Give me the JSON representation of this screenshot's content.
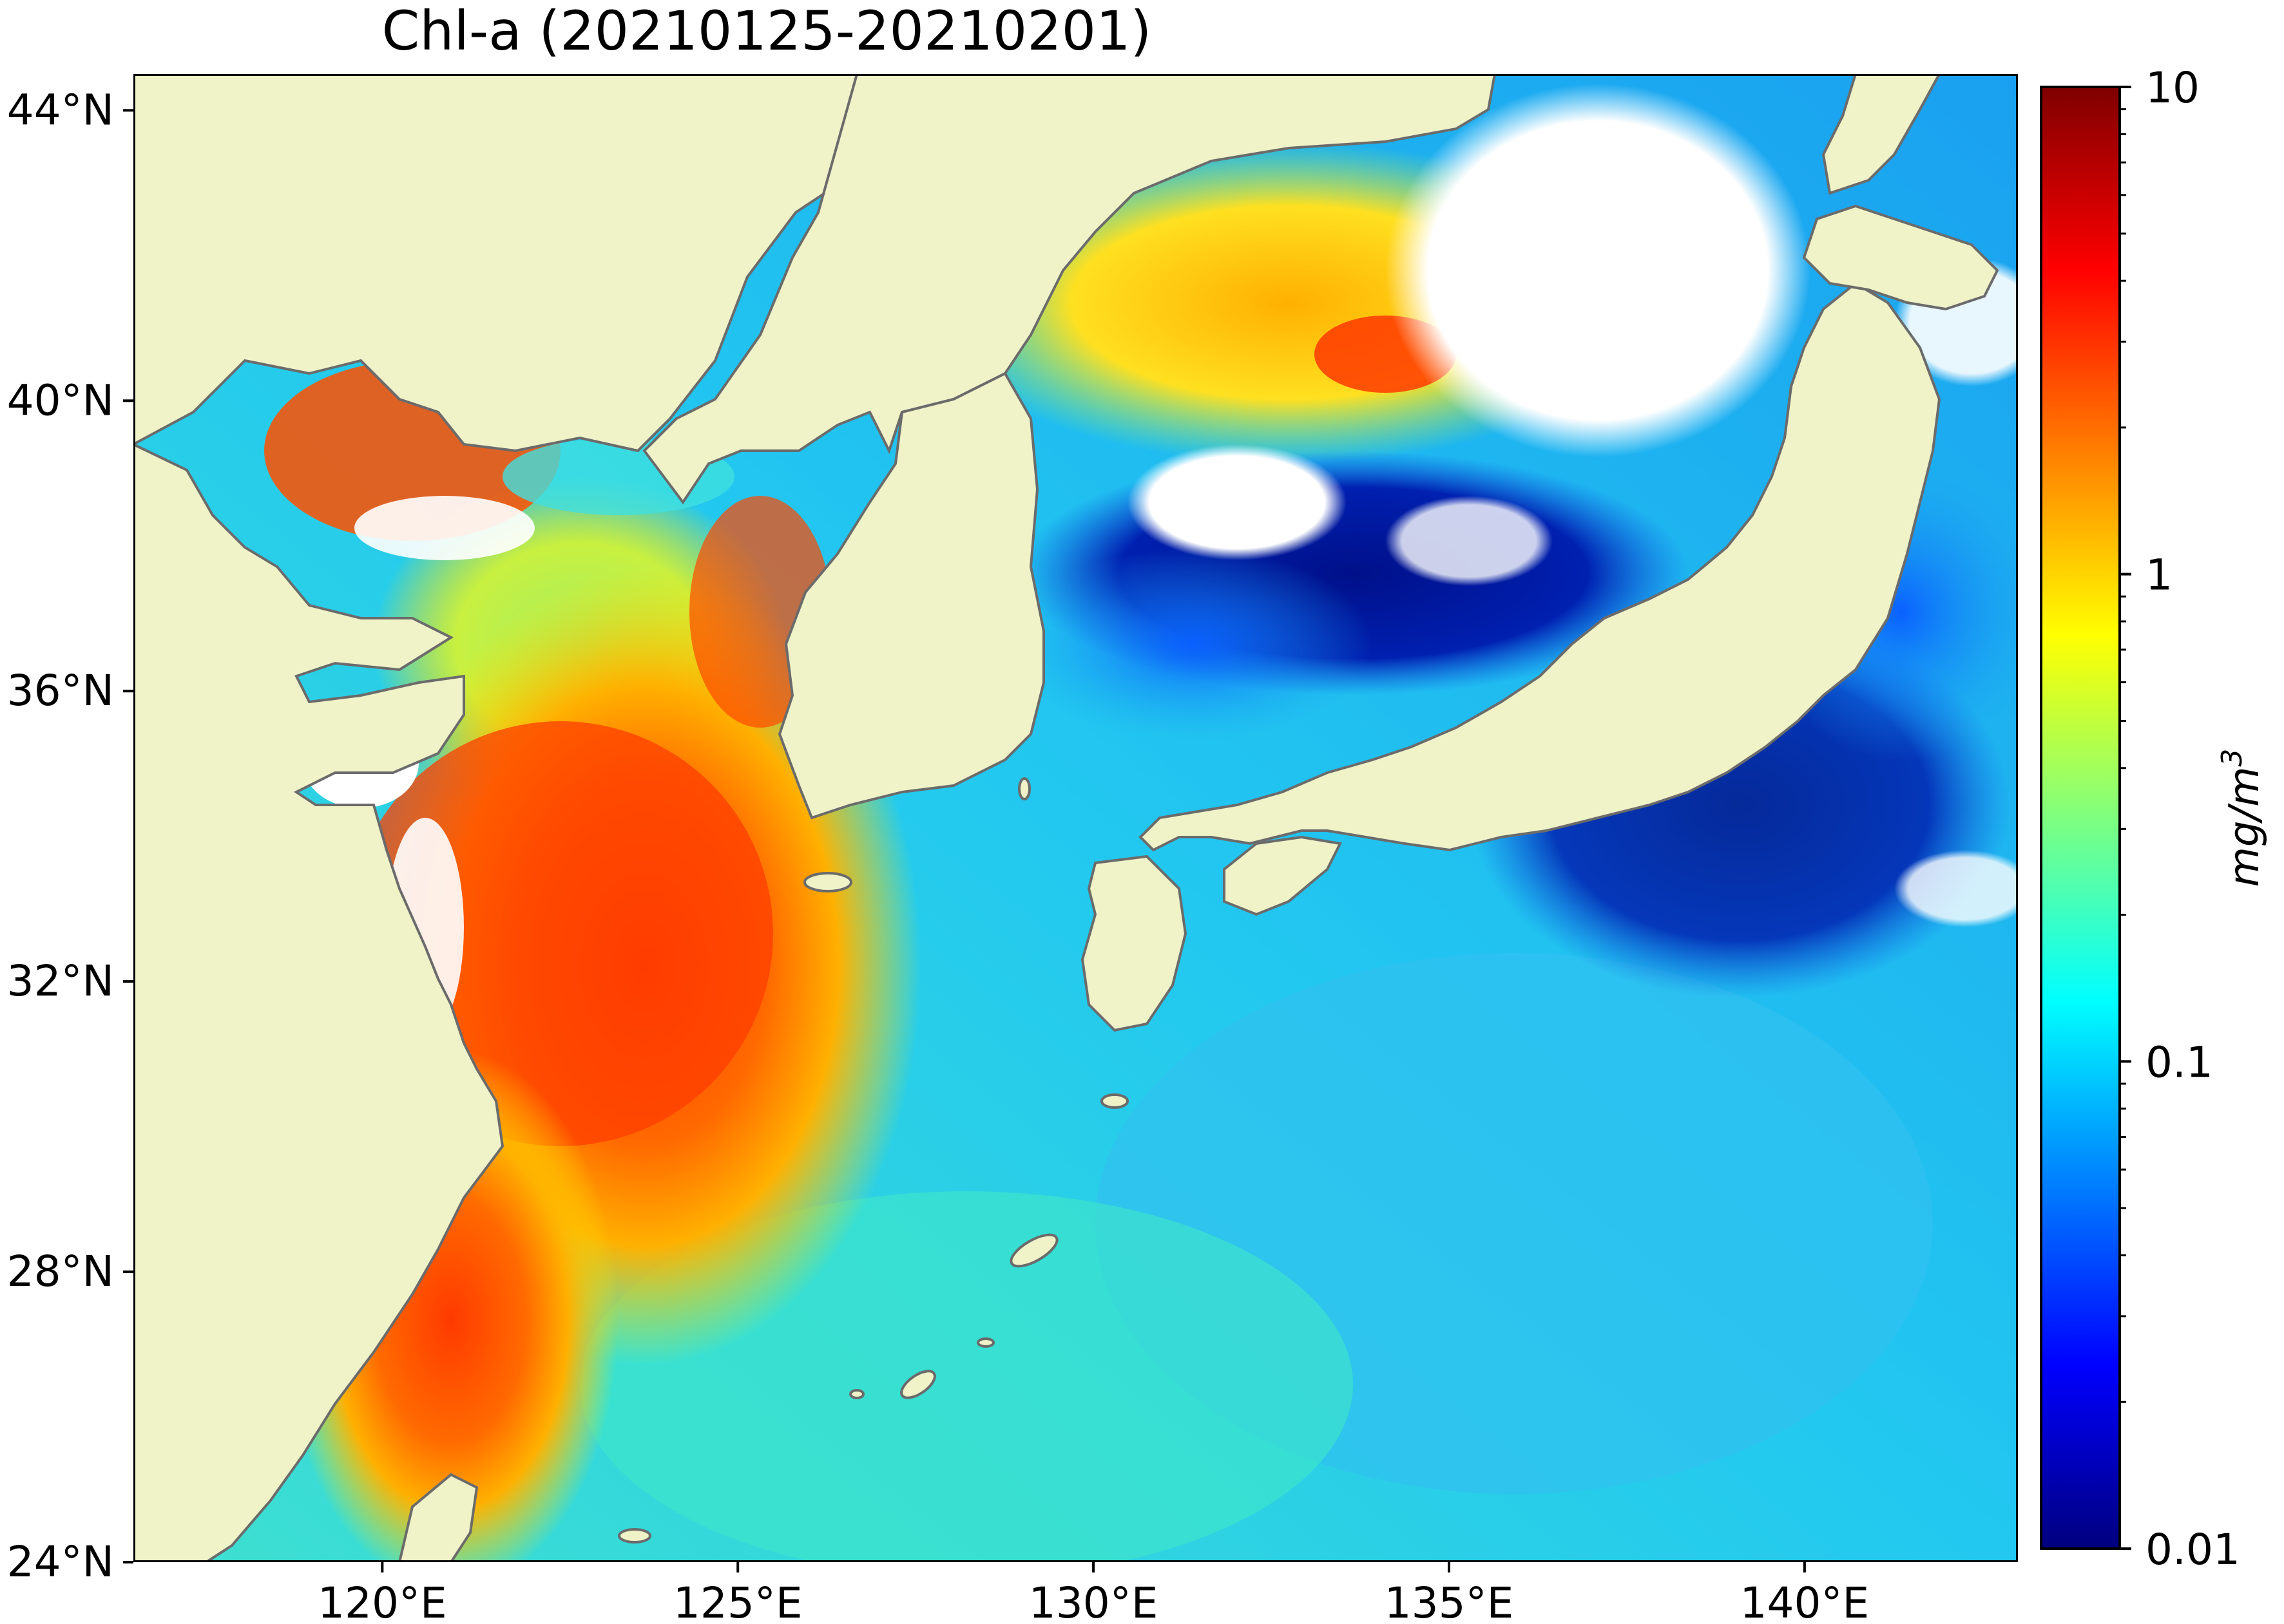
{
  "title": "Chl-a (20210125-20210201)",
  "map": {
    "lon_range": [
      116.5,
      143.0
    ],
    "lat_range": [
      24.0,
      44.5
    ],
    "lon_ticks": [
      {
        "value": 120,
        "label": "120°E"
      },
      {
        "value": 125,
        "label": "125°E"
      },
      {
        "value": 130,
        "label": "130°E"
      },
      {
        "value": 135,
        "label": "135°E"
      },
      {
        "value": 140,
        "label": "140°E"
      }
    ],
    "lat_ticks": [
      {
        "value": 24,
        "label": "24°N"
      },
      {
        "value": 28,
        "label": "28°N"
      },
      {
        "value": 32,
        "label": "32°N"
      },
      {
        "value": 36,
        "label": "36°N"
      },
      {
        "value": 40,
        "label": "40°N"
      },
      {
        "value": 44,
        "label": "44°N"
      }
    ],
    "land_color": "#f0f2c8",
    "coastline_color": "#6b6b6b",
    "no_data_color": "#ffffff"
  },
  "colorbar": {
    "scale": "log",
    "range": [
      0.01,
      10
    ],
    "ticks": [
      {
        "value": 10,
        "label": "10"
      },
      {
        "value": 1,
        "label": "1"
      },
      {
        "value": 0.1,
        "label": "0.1"
      },
      {
        "value": 0.01,
        "label": "0.01"
      }
    ],
    "unit": "mg/m",
    "unit_superscript": "3",
    "colormap": "jet",
    "colormap_stops": [
      "#00007f",
      "#0000ff",
      "#007fff",
      "#00ffff",
      "#7fff7f",
      "#ffff00",
      "#ff7f00",
      "#ff0000",
      "#7f0000"
    ]
  }
}
